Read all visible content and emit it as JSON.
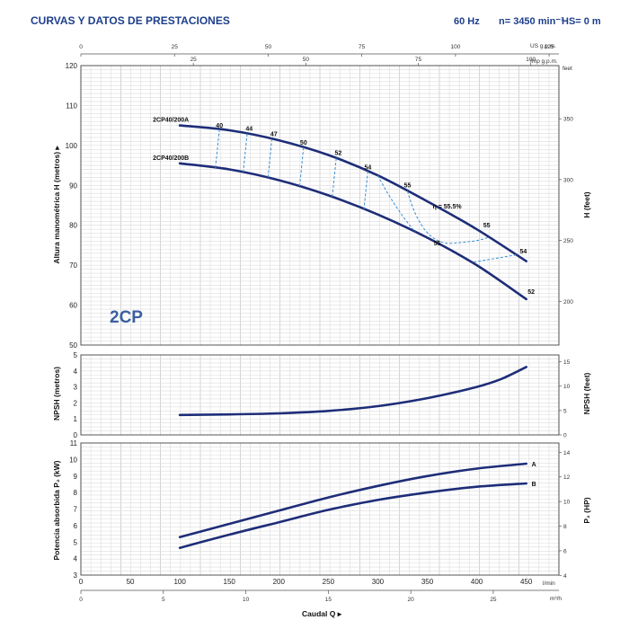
{
  "chart_data": {
    "type": "line",
    "title": "CURVAS Y DATOS DE PRESTACIONES",
    "frequency": "60 Hz",
    "speed": "n= 3450 min⁻¹",
    "suction_height": "HS= 0 m",
    "model_family": "2CP",
    "xlabel": "Caudal Q ▸",
    "x_axes": {
      "l_min": {
        "unit": "l/min",
        "range": [
          0,
          483
        ],
        "ticks": [
          "0",
          "50",
          "100",
          "150",
          "200",
          "250",
          "300",
          "350",
          "400",
          "450"
        ]
      },
      "m3_h": {
        "unit": "m³/h",
        "ticks": [
          "0",
          "5",
          "10",
          "15",
          "20",
          "25"
        ]
      },
      "us_gpm": {
        "unit": "US g.p.m.",
        "ticks": [
          "0",
          "25",
          "50",
          "75",
          "100",
          "125"
        ]
      },
      "imp_gpm": {
        "unit": "Imp g.p.m.",
        "ticks": [
          "25",
          "50",
          "75",
          "100"
        ]
      }
    },
    "head_panel": {
      "ylabel": "Altura manométrica H (metros) ▸",
      "y2label": "H (feet)",
      "y2_unit": "feet",
      "ylim": [
        50,
        120
      ],
      "yticks": [
        "50",
        "60",
        "70",
        "80",
        "90",
        "100",
        "110",
        "120"
      ],
      "y2ticks": [
        "200",
        "250",
        "300",
        "350"
      ],
      "series": [
        {
          "name": "2CP40/200A",
          "x": [
            100,
            150,
            200,
            250,
            300,
            350,
            400,
            450
          ],
          "y": [
            105,
            103.8,
            101.3,
            97.6,
            92.5,
            86.0,
            79.0,
            71.0
          ]
        },
        {
          "name": "2CP40/200B",
          "x": [
            100,
            150,
            200,
            250,
            300,
            350,
            400,
            450
          ],
          "y": [
            95.5,
            94.0,
            91.3,
            87.5,
            82.7,
            76.9,
            70.0,
            61.5
          ]
        }
      ],
      "efficiency_labels": [
        {
          "text": "40",
          "q": 140,
          "h": 104.5
        },
        {
          "text": "44",
          "q": 170,
          "h": 103.7
        },
        {
          "text": "47",
          "q": 195,
          "h": 102.3
        },
        {
          "text": "50",
          "q": 225,
          "h": 100.2
        },
        {
          "text": "52",
          "q": 260,
          "h": 97.6
        },
        {
          "text": "54",
          "q": 290,
          "h": 94.0
        },
        {
          "text": "55",
          "q": 330,
          "h": 89.5
        },
        {
          "text": "η = 55.5%",
          "q": 370,
          "h": 84.2
        },
        {
          "text": "55",
          "q": 410,
          "h": 79.5
        },
        {
          "text": "55",
          "q": 360,
          "h": 75.0
        },
        {
          "text": "54",
          "q": 447,
          "h": 73.0
        },
        {
          "text": "52",
          "q": 455,
          "h": 62.8
        }
      ]
    },
    "npsh_panel": {
      "ylabel": "NPSH (metros)",
      "y2label": "NPSH (feet)",
      "ylim": [
        0,
        5
      ],
      "yticks": [
        "0",
        "1",
        "2",
        "3",
        "4",
        "5"
      ],
      "y2ticks": [
        "0",
        "5",
        "10",
        "15"
      ],
      "series": [
        {
          "x": [
            100,
            150,
            200,
            250,
            300,
            350,
            400,
            425,
            450
          ],
          "y": [
            1.25,
            1.28,
            1.35,
            1.5,
            1.8,
            2.3,
            3.0,
            3.5,
            4.25
          ]
        }
      ]
    },
    "power_panel": {
      "ylabel": "Potencia absorbida P₂ (kW)",
      "y2label": "P₂ (HP)",
      "ylim": [
        3,
        11
      ],
      "yticks": [
        "3",
        "4",
        "5",
        "6",
        "7",
        "8",
        "9",
        "10",
        "11"
      ],
      "y2ticks": [
        "4",
        "6",
        "8",
        "10",
        "12",
        "14"
      ],
      "series": [
        {
          "name": "A",
          "x": [
            100,
            150,
            200,
            250,
            300,
            350,
            400,
            450
          ],
          "y": [
            5.3,
            6.1,
            6.9,
            7.7,
            8.4,
            9.0,
            9.45,
            9.75
          ]
        },
        {
          "name": "B",
          "x": [
            100,
            150,
            200,
            250,
            300,
            350,
            400,
            450
          ],
          "y": [
            4.65,
            5.45,
            6.2,
            6.95,
            7.55,
            8.0,
            8.35,
            8.55
          ]
        }
      ]
    }
  }
}
